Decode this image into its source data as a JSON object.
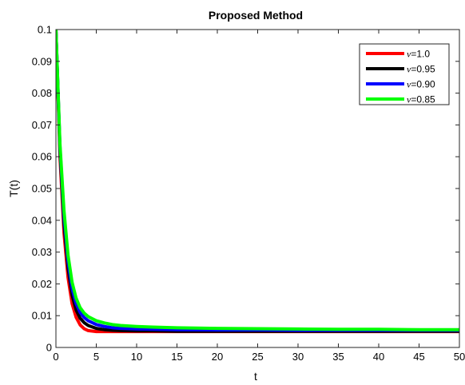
{
  "chart_data": {
    "type": "line",
    "title": "Proposed Method",
    "xlabel": "t",
    "ylabel": "T(t)",
    "xlim": [
      0,
      50
    ],
    "ylim": [
      0,
      0.1
    ],
    "x_ticks": [
      0,
      5,
      10,
      15,
      20,
      25,
      30,
      35,
      40,
      45,
      50
    ],
    "y_ticks": [
      0,
      0.01,
      0.02,
      0.03,
      0.04,
      0.05,
      0.06,
      0.07,
      0.08,
      0.09,
      0.1
    ],
    "x_tick_labels": [
      "0",
      "5",
      "10",
      "15",
      "20",
      "25",
      "30",
      "35",
      "40",
      "45",
      "50"
    ],
    "y_tick_labels": [
      "0",
      "0.01",
      "0.02",
      "0.03",
      "0.04",
      "0.05",
      "0.06",
      "0.07",
      "0.08",
      "0.09",
      "0.1"
    ],
    "grid": false,
    "legend_position": "top-right",
    "legend_symbol": "ν",
    "x": [
      0,
      0.5,
      1,
      1.5,
      2,
      2.5,
      3,
      3.5,
      4,
      5,
      6,
      7,
      8,
      10,
      12,
      15,
      20,
      25,
      30,
      35,
      40,
      45,
      50
    ],
    "series": [
      {
        "name": "=1.0",
        "color": "#ff0000",
        "values": [
          0.1,
          0.06,
          0.036,
          0.022,
          0.0138,
          0.0095,
          0.0071,
          0.0059,
          0.0053,
          0.005,
          0.005,
          0.005,
          0.005,
          0.005,
          0.005,
          0.005,
          0.005,
          0.005,
          0.005,
          0.005,
          0.005,
          0.005,
          0.005
        ]
      },
      {
        "name": "=0.95",
        "color": "#000000",
        "values": [
          0.1,
          0.062,
          0.039,
          0.025,
          0.0165,
          0.0118,
          0.0092,
          0.0078,
          0.0069,
          0.006,
          0.0056,
          0.0054,
          0.0053,
          0.0052,
          0.0052,
          0.0051,
          0.0051,
          0.0051,
          0.0051,
          0.0051,
          0.0051,
          0.0051,
          0.0051
        ]
      },
      {
        "name": "=0.90",
        "color": "#0000ff",
        "values": [
          0.1,
          0.063,
          0.041,
          0.027,
          0.0185,
          0.0138,
          0.011,
          0.0094,
          0.0084,
          0.0072,
          0.0066,
          0.0062,
          0.006,
          0.0058,
          0.0057,
          0.0056,
          0.0055,
          0.0055,
          0.0054,
          0.0054,
          0.0054,
          0.0054,
          0.0054
        ]
      },
      {
        "name": "=0.85",
        "color": "#00ff00",
        "values": [
          0.1,
          0.064,
          0.043,
          0.029,
          0.0205,
          0.0155,
          0.0125,
          0.0108,
          0.0097,
          0.0084,
          0.0077,
          0.0072,
          0.0069,
          0.0066,
          0.0064,
          0.0062,
          0.006,
          0.0059,
          0.0058,
          0.0057,
          0.0057,
          0.0056,
          0.0056
        ]
      }
    ]
  }
}
